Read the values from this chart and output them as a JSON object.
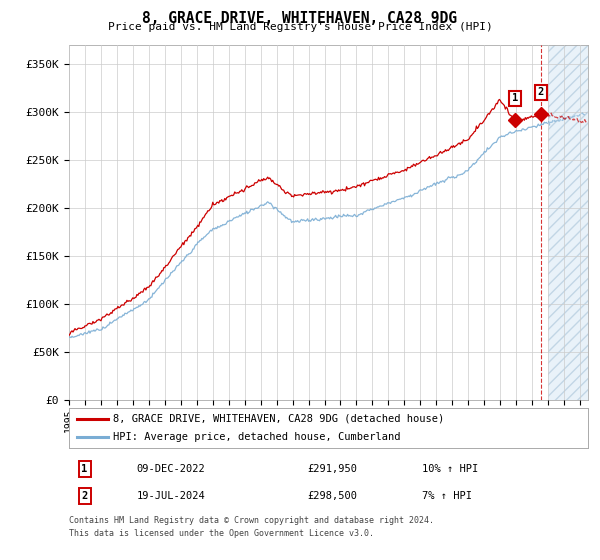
{
  "title": "8, GRACE DRIVE, WHITEHAVEN, CA28 9DG",
  "subtitle": "Price paid vs. HM Land Registry's House Price Index (HPI)",
  "ylabel_ticks": [
    "£0",
    "£50K",
    "£100K",
    "£150K",
    "£200K",
    "£250K",
    "£300K",
    "£350K"
  ],
  "ytick_values": [
    0,
    50000,
    100000,
    150000,
    200000,
    250000,
    300000,
    350000
  ],
  "ylim": [
    0,
    370000
  ],
  "xlim_start": 1995.0,
  "xlim_end": 2027.5,
  "legend_line1": "8, GRACE DRIVE, WHITEHAVEN, CA28 9DG (detached house)",
  "legend_line2": "HPI: Average price, detached house, Cumberland",
  "transaction1_date": "09-DEC-2022",
  "transaction1_price": "£291,950",
  "transaction1_hpi": "10% ↑ HPI",
  "transaction2_date": "19-JUL-2024",
  "transaction2_price": "£298,500",
  "transaction2_hpi": "7% ↑ HPI",
  "footnote1": "Contains HM Land Registry data © Crown copyright and database right 2024.",
  "footnote2": "This data is licensed under the Open Government Licence v3.0.",
  "line_color_red": "#cc0000",
  "line_color_blue": "#7aadd4",
  "bg_color": "#ffffff",
  "grid_color": "#cccccc",
  "future_fill_color": "#d8e8f5",
  "transaction1_x": 2022.94,
  "transaction1_y": 291950,
  "transaction2_x": 2024.55,
  "transaction2_y": 298500,
  "future_start": 2025.0
}
